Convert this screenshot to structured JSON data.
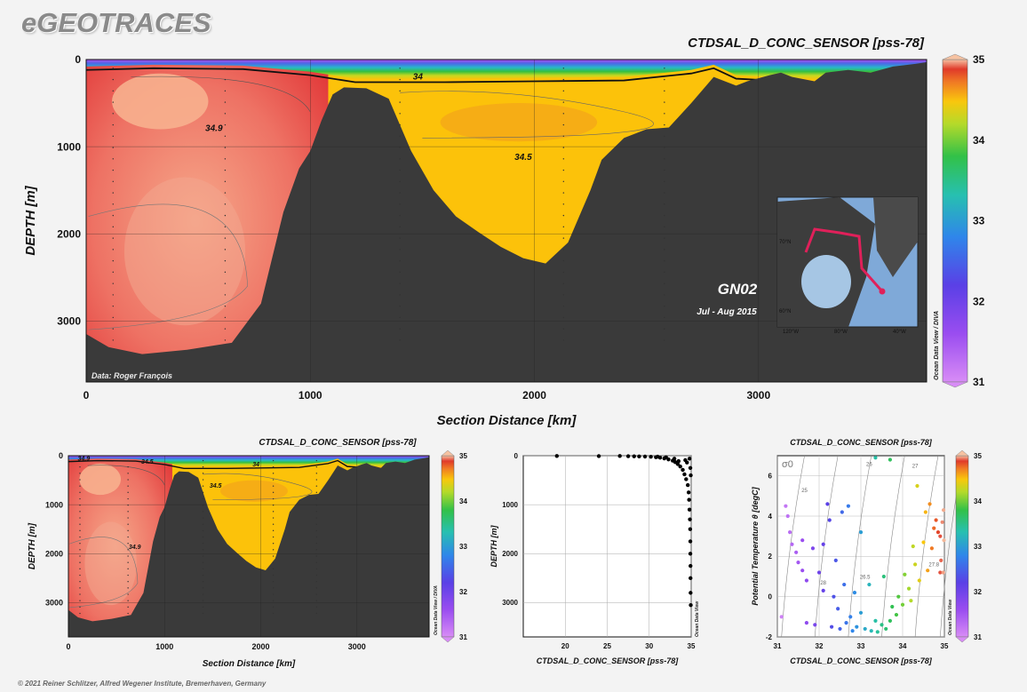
{
  "brand": "eGEOTRACES",
  "footer": "© 2021 Reiner Schlitzer, Alfred Wegener Institute, Bremerhaven, Germany",
  "colors": {
    "seafloor": "#3a3a3a",
    "background": "#f3f3f3",
    "track": "#e0205a"
  },
  "chart_data": [
    {
      "type": "heatmap",
      "title": "CTDSAL_D_CONC_SENSOR [pss-78]",
      "xlabel": "Section Distance [km]",
      "ylabel": "DEPTH [m]",
      "xlim": [
        0,
        3750
      ],
      "ylim": [
        3700,
        0
      ],
      "xticks": [
        "0",
        "1000",
        "2000",
        "3000"
      ],
      "xtick_values": [
        0,
        1000,
        2000,
        3000
      ],
      "yticks": [
        "0",
        "1000",
        "2000",
        "3000"
      ],
      "ytick_values": [
        0,
        1000,
        2000,
        3000
      ],
      "colorbar": {
        "min": 31,
        "max": 35,
        "ticks": [
          "31",
          "32",
          "33",
          "34",
          "35"
        ],
        "label": "Ocean Data View / DIVA"
      },
      "contours": [
        {
          "label": "34.9",
          "value": 34.9,
          "at": [
            570,
            820
          ]
        },
        {
          "label": "34.5",
          "value": 34.5,
          "at": [
            1950,
            1150
          ]
        },
        {
          "label": "34",
          "value": 34,
          "at": [
            1480,
            230
          ]
        }
      ],
      "bathymetry": {
        "distance": [
          0,
          100,
          250,
          450,
          650,
          780,
          880,
          950,
          1000,
          1050,
          1100,
          1150,
          1250,
          1350,
          1450,
          1550,
          1650,
          1750,
          1850,
          1950,
          2050,
          2150,
          2250,
          2300,
          2400,
          2500,
          2600,
          2700,
          2800,
          2850,
          2900,
          2950,
          3050,
          3100,
          3150,
          3250,
          3300,
          3400,
          3500,
          3600,
          3700,
          3750
        ],
        "depth": [
          3150,
          3300,
          3380,
          3330,
          3250,
          2800,
          1750,
          1250,
          1050,
          700,
          400,
          320,
          330,
          450,
          1050,
          1500,
          1800,
          1980,
          2150,
          2280,
          2340,
          2100,
          1500,
          1150,
          900,
          800,
          780,
          500,
          200,
          250,
          300,
          250,
          180,
          150,
          200,
          250,
          150,
          120,
          150,
          80,
          50,
          30
        ]
      },
      "annotations": [
        "Data: Roger François",
        "GN02",
        "Jul - Aug 2015"
      ],
      "inset_map": {
        "lat_labels": [
          "70°N",
          "60°N"
        ],
        "lon_labels": [
          "120°W",
          "80°W",
          "40°W"
        ]
      }
    },
    {
      "type": "heatmap",
      "title": "CTDSAL_D_CONC_SENSOR [pss-78]",
      "xlabel": "Section Distance [km]",
      "ylabel": "DEPTH [m]",
      "xlim": [
        0,
        3750
      ],
      "ylim": [
        3700,
        0
      ],
      "xticks": [
        "0",
        "1000",
        "2000",
        "3000"
      ],
      "xtick_values": [
        0,
        1000,
        2000,
        3000
      ],
      "yticks": [
        "0",
        "1000",
        "2000",
        "3000"
      ],
      "ytick_values": [
        0,
        1000,
        2000,
        3000
      ],
      "colorbar": {
        "min": 31,
        "max": 35,
        "ticks": [
          "31",
          "32",
          "33",
          "34",
          "35"
        ],
        "label": "Ocean Data View / DIVA"
      },
      "contours": [
        {
          "label": "34.9",
          "value": 34.9,
          "at": [
            160,
            100
          ]
        },
        {
          "label": "34.5",
          "value": 34.5,
          "at": [
            820,
            160
          ]
        },
        {
          "label": "34",
          "value": 34,
          "at": [
            1950,
            220
          ]
        },
        {
          "label": "34.5",
          "value": 34.5,
          "at": [
            1530,
            650
          ]
        },
        {
          "label": "34.9",
          "value": 34.9,
          "at": [
            690,
            1900
          ]
        }
      ]
    },
    {
      "type": "scatter",
      "xlabel": "CTDSAL_D_CONC_SENSOR [pss-78]",
      "ylabel": "DEPTH [m]",
      "xlim": [
        15,
        35
      ],
      "ylim": [
        3700,
        0
      ],
      "xticks": [
        "20",
        "25",
        "30",
        "35"
      ],
      "xtick_values": [
        20,
        25,
        30,
        35
      ],
      "yticks": [
        "0",
        "1000",
        "2000",
        "3000"
      ],
      "ytick_values": [
        0,
        1000,
        2000,
        3000
      ],
      "side_label": "Ocean Data View",
      "points": [
        [
          19.0,
          5
        ],
        [
          24.0,
          8
        ],
        [
          26.5,
          6
        ],
        [
          27.5,
          10
        ],
        [
          28.2,
          12
        ],
        [
          28.8,
          15
        ],
        [
          29.5,
          18
        ],
        [
          30.2,
          22
        ],
        [
          30.8,
          30
        ],
        [
          31.3,
          40
        ],
        [
          31.8,
          55
        ],
        [
          32.3,
          75
        ],
        [
          32.8,
          100
        ],
        [
          33.1,
          130
        ],
        [
          33.4,
          170
        ],
        [
          33.7,
          220
        ],
        [
          34.0,
          290
        ],
        [
          34.2,
          380
        ],
        [
          34.4,
          480
        ],
        [
          34.6,
          600
        ],
        [
          34.7,
          750
        ],
        [
          34.75,
          900
        ],
        [
          34.8,
          1100
        ],
        [
          34.85,
          1300
        ],
        [
          34.88,
          1500
        ],
        [
          34.9,
          1750
        ],
        [
          34.9,
          2000
        ],
        [
          34.92,
          2250
        ],
        [
          34.92,
          2500
        ],
        [
          34.93,
          2800
        ],
        [
          34.95,
          3050
        ],
        [
          33.0,
          60
        ],
        [
          32.0,
          30
        ],
        [
          31.0,
          20
        ],
        [
          33.5,
          110
        ],
        [
          34.5,
          140
        ],
        [
          34.8,
          60
        ],
        [
          34.9,
          250
        ],
        [
          34.95,
          400
        ],
        [
          34.3,
          90
        ]
      ]
    },
    {
      "type": "scatter",
      "title": "CTDSAL_D_CONC_SENSOR [pss-78]",
      "xlabel": "CTDSAL_D_CONC_SENSOR [pss-78]",
      "ylabel": "Potential Temperature θ [degC]",
      "xlim": [
        31,
        35
      ],
      "ylim": [
        -2,
        7
      ],
      "xticks": [
        "31",
        "32",
        "33",
        "34",
        "35"
      ],
      "xtick_values": [
        31,
        32,
        33,
        34,
        35
      ],
      "yticks": [
        "-2",
        "0",
        "2",
        "4",
        "6"
      ],
      "ytick_values": [
        -2,
        0,
        2,
        4,
        6
      ],
      "sigma_symbol": "σ0",
      "isopycnal_labels": [
        "25",
        "26",
        "27",
        "26.5",
        "28",
        "27.8"
      ],
      "colorbar": {
        "min": 31,
        "max": 35,
        "ticks": [
          "31",
          "32",
          "33",
          "34",
          "35"
        ],
        "label": "Ocean Data View"
      },
      "points": [
        [
          31.1,
          -1.0
        ],
        [
          31.2,
          4.5
        ],
        [
          31.25,
          4.0
        ],
        [
          31.3,
          3.2
        ],
        [
          31.35,
          2.6
        ],
        [
          31.45,
          2.2
        ],
        [
          31.5,
          1.7
        ],
        [
          31.6,
          2.8
        ],
        [
          31.6,
          1.3
        ],
        [
          31.7,
          0.8
        ],
        [
          31.7,
          -1.3
        ],
        [
          31.85,
          2.4
        ],
        [
          31.9,
          -1.4
        ],
        [
          32.0,
          1.2
        ],
        [
          32.1,
          0.3
        ],
        [
          32.1,
          2.6
        ],
        [
          32.2,
          4.6
        ],
        [
          32.25,
          3.8
        ],
        [
          32.3,
          -1.5
        ],
        [
          32.35,
          0.0
        ],
        [
          32.4,
          1.8
        ],
        [
          32.45,
          -0.6
        ],
        [
          32.5,
          -1.6
        ],
        [
          32.55,
          4.2
        ],
        [
          32.6,
          0.6
        ],
        [
          32.65,
          -1.3
        ],
        [
          32.7,
          4.5
        ],
        [
          32.75,
          -1.0
        ],
        [
          32.8,
          -1.7
        ],
        [
          32.85,
          0.2
        ],
        [
          32.9,
          -1.5
        ],
        [
          33.0,
          3.2
        ],
        [
          33.0,
          -0.8
        ],
        [
          33.1,
          -1.6
        ],
        [
          33.2,
          0.6
        ],
        [
          33.25,
          -1.7
        ],
        [
          33.35,
          -1.2
        ],
        [
          33.4,
          -1.75
        ],
        [
          33.5,
          -1.4
        ],
        [
          33.55,
          1.0
        ],
        [
          33.6,
          -1.6
        ],
        [
          33.7,
          -1.2
        ],
        [
          33.75,
          -0.5
        ],
        [
          33.85,
          -0.9
        ],
        [
          33.9,
          0.0
        ],
        [
          34.0,
          -0.4
        ],
        [
          34.05,
          1.1
        ],
        [
          34.15,
          0.4
        ],
        [
          34.2,
          -0.2
        ],
        [
          34.25,
          2.5
        ],
        [
          34.3,
          1.6
        ],
        [
          34.35,
          5.5
        ],
        [
          34.4,
          0.8
        ],
        [
          34.5,
          2.7
        ],
        [
          34.55,
          4.2
        ],
        [
          34.6,
          1.3
        ],
        [
          34.65,
          4.6
        ],
        [
          34.7,
          2.4
        ],
        [
          34.75,
          3.4
        ],
        [
          34.8,
          3.8
        ],
        [
          34.85,
          3.2
        ],
        [
          34.9,
          1.2
        ],
        [
          34.9,
          3.0
        ],
        [
          34.92,
          1.8
        ],
        [
          34.95,
          3.7
        ],
        [
          34.97,
          1.2
        ],
        [
          34.98,
          4.3
        ],
        [
          34.99,
          2.8
        ],
        [
          33.7,
          6.8
        ],
        [
          33.35,
          6.9
        ]
      ]
    }
  ]
}
